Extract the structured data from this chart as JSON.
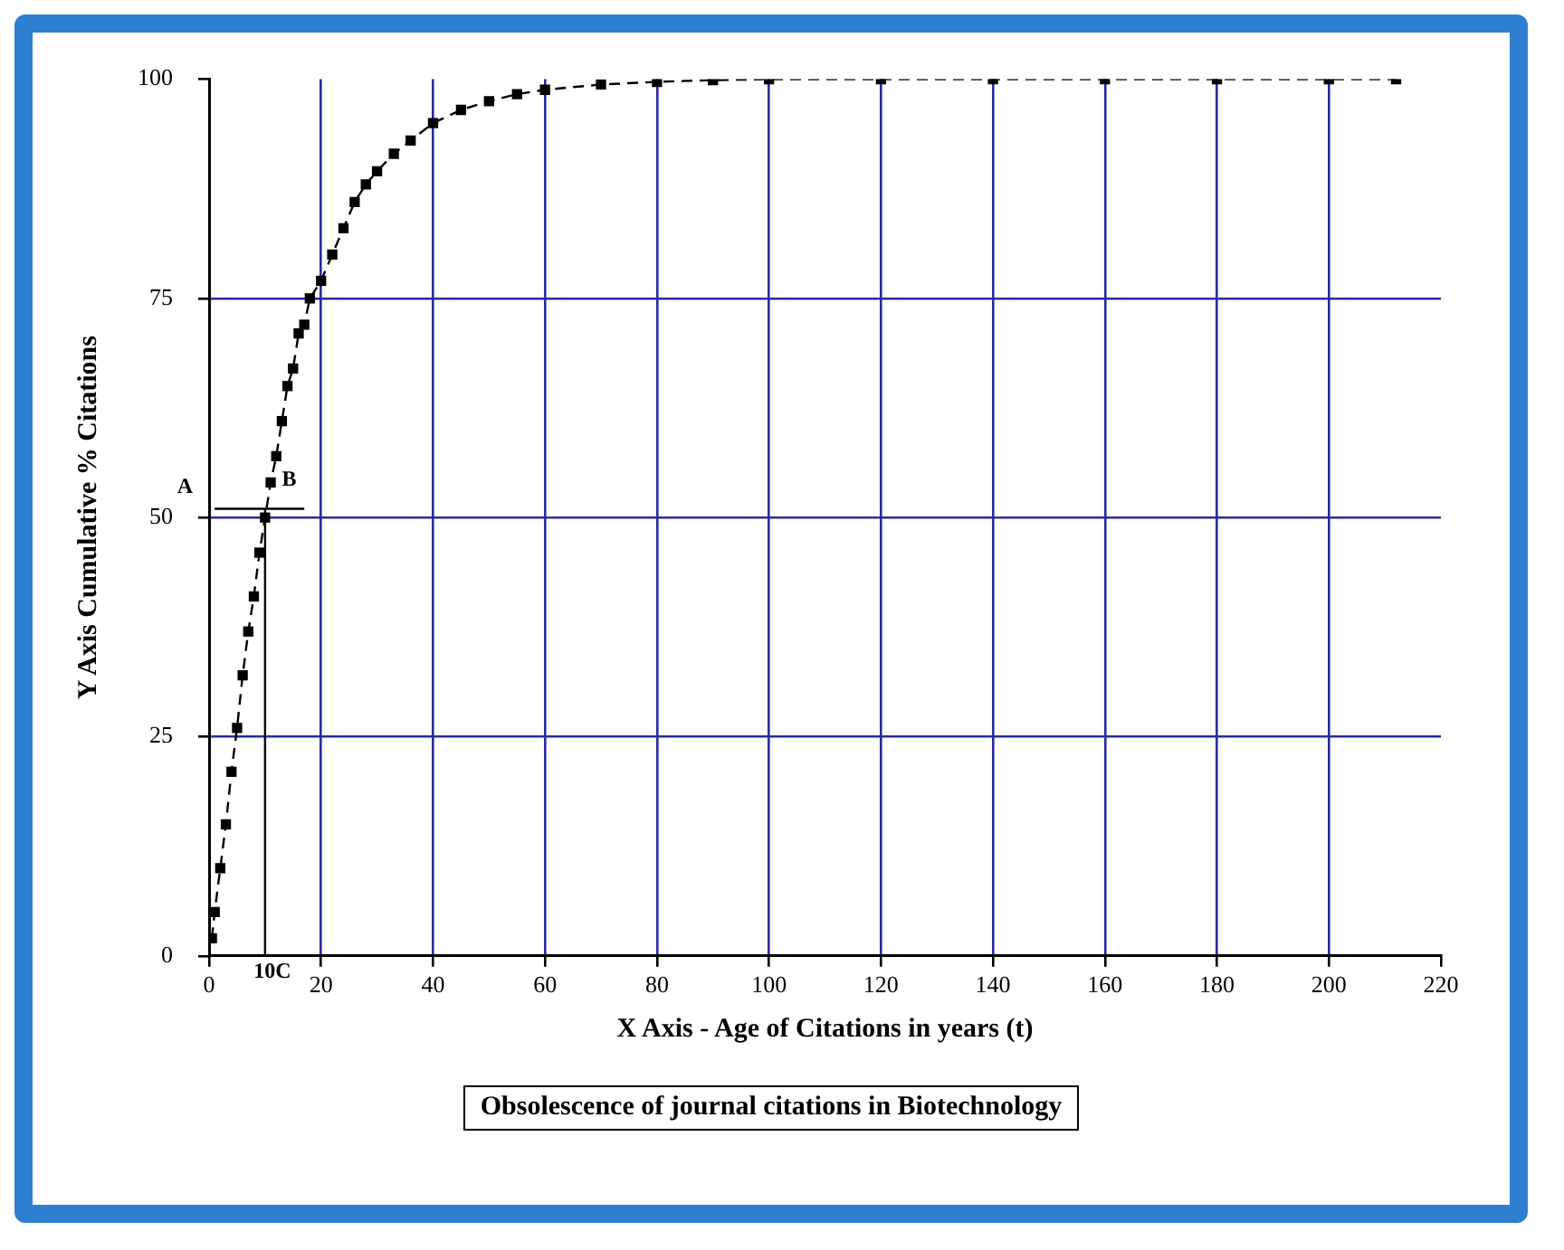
{
  "chart_data": {
    "type": "line",
    "xlabel": "X Axis - Age of Citations in years (t)",
    "ylabel": "Y Axis Cumulative % Citations",
    "annotations": [
      "Obsolescence of journal citations in Biotechnology",
      {
        "text": "A",
        "x": 1,
        "y": 51
      },
      {
        "text": "B",
        "x": 13,
        "y": 53
      },
      {
        "text": "10C",
        "x": 10,
        "y": 0
      }
    ],
    "xlim": [
      0,
      220
    ],
    "xticks": [
      0,
      20,
      40,
      60,
      80,
      100,
      120,
      140,
      160,
      180,
      200,
      220
    ],
    "ylim": [
      0,
      100
    ],
    "yticks": [
      0,
      25,
      50,
      75,
      100
    ],
    "grid": true,
    "legend": false,
    "series": [
      {
        "color": "#000000",
        "marker": "square",
        "line_style": "dashed",
        "x": [
          0.5,
          1,
          2,
          3,
          4,
          5,
          6,
          7,
          8,
          9,
          10,
          11,
          12,
          13,
          14,
          15,
          16,
          17,
          18,
          20,
          22,
          24,
          26,
          28,
          30,
          33,
          36,
          40,
          45,
          50,
          55,
          60,
          70,
          80,
          90,
          100,
          120,
          140,
          160,
          180,
          200,
          212
        ],
        "values": [
          2,
          5,
          10,
          15,
          21,
          26,
          32,
          37,
          41,
          46,
          50,
          54,
          57,
          61,
          65,
          67,
          71,
          72,
          75,
          77,
          80,
          83,
          86,
          88,
          89.5,
          91.5,
          93,
          95,
          96.5,
          97.5,
          98.3,
          98.8,
          99.4,
          99.7,
          99.9,
          100,
          100,
          100,
          100,
          100,
          100,
          100
        ]
      },
      {
        "color": "#000000",
        "marker": "none",
        "line_style": "solid",
        "x": [
          1,
          17
        ],
        "values": [
          51,
          51
        ]
      },
      {
        "color": "#000000",
        "marker": "none",
        "line_style": "solid",
        "x": [
          10,
          10
        ],
        "values": [
          0,
          51
        ]
      }
    ]
  }
}
